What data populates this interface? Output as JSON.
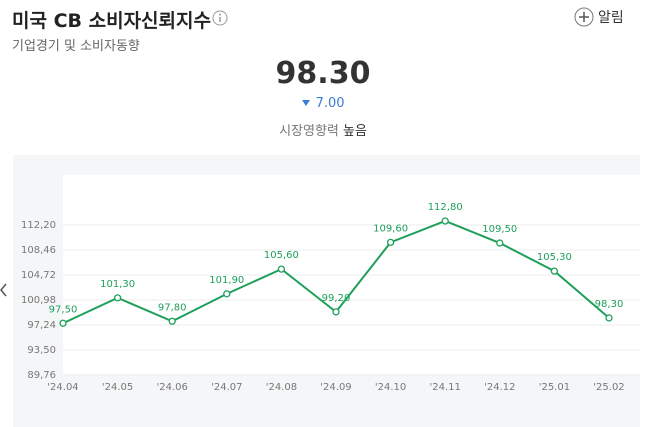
{
  "chart_data": {
    "type": "line",
    "title": "미국 CB 소비자신뢰지수",
    "subtitle": "기업경기 및 소비자동향",
    "alert": "알림",
    "current": "98.30",
    "change": "7.00",
    "influence_label": "시장영향력",
    "influence": "높음",
    "categories": [
      "'24.04",
      "'24.05",
      "'24.06",
      "'24.07",
      "'24.08",
      "'24.09",
      "'24.10",
      "'24.11",
      "'24.12",
      "'25.01",
      "'25.02"
    ],
    "series": [
      {
        "name": "미국 CB 소비자신뢰지수",
        "color": "#1fa05a",
        "values": [
          97.5,
          101.3,
          97.8,
          101.9,
          105.6,
          99.2,
          109.6,
          112.8,
          109.5,
          105.3,
          98.3
        ],
        "value_labels": [
          "97,50",
          "101,30",
          "97,80",
          "101,90",
          "105,60",
          "99,20",
          "109,60",
          "112,80",
          "109,50",
          "105,30",
          "98,30"
        ]
      }
    ],
    "ylim": [
      89.76,
      119.68
    ],
    "yticks": [
      {
        "value": 89.76,
        "label": "89,76"
      },
      {
        "value": 93.5,
        "label": "93,50"
      },
      {
        "value": 97.24,
        "label": "97,24"
      },
      {
        "value": 100.98,
        "label": "100,98"
      },
      {
        "value": 104.72,
        "label": "104,72"
      },
      {
        "value": 108.46,
        "label": "108,46"
      },
      {
        "value": 112.2,
        "label": "112,20"
      }
    ],
    "grid": true
  }
}
